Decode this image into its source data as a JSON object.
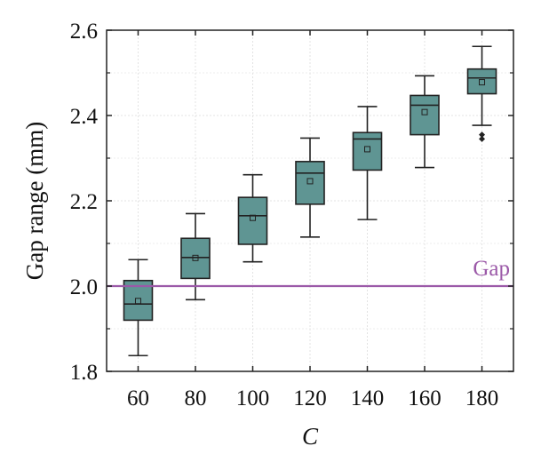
{
  "chart_data": {
    "type": "box",
    "xlabel": "C",
    "ylabel": "Gap range (mm)",
    "categories": [
      "60",
      "80",
      "100",
      "120",
      "140",
      "160",
      "180"
    ],
    "ylim": [
      1.8,
      2.6
    ],
    "yticks": [
      "1.8",
      "2.0",
      "2.2",
      "2.4",
      "2.6"
    ],
    "grid": true,
    "box_color": "#5f9593",
    "boxes": [
      {
        "min": 1.837,
        "q1": 1.92,
        "median": 1.958,
        "mean": 1.965,
        "q3": 2.013,
        "max": 2.062,
        "outliers": []
      },
      {
        "min": 1.968,
        "q1": 2.018,
        "median": 2.067,
        "mean": 2.066,
        "q3": 2.112,
        "max": 2.17,
        "outliers": []
      },
      {
        "min": 2.057,
        "q1": 2.098,
        "median": 2.165,
        "mean": 2.16,
        "q3": 2.208,
        "max": 2.261,
        "outliers": []
      },
      {
        "min": 2.115,
        "q1": 2.192,
        "median": 2.265,
        "mean": 2.246,
        "q3": 2.292,
        "max": 2.347,
        "outliers": []
      },
      {
        "min": 2.156,
        "q1": 2.272,
        "median": 2.345,
        "mean": 2.321,
        "q3": 2.36,
        "max": 2.421,
        "outliers": []
      },
      {
        "min": 2.278,
        "q1": 2.355,
        "median": 2.424,
        "mean": 2.408,
        "q3": 2.447,
        "max": 2.493,
        "outliers": []
      },
      {
        "min": 2.377,
        "q1": 2.451,
        "median": 2.488,
        "mean": 2.478,
        "q3": 2.509,
        "max": 2.562,
        "outliers": [
          2.345,
          2.355
        ]
      }
    ],
    "reference_line": {
      "label": "Gap",
      "value": 2.0,
      "color": "#9b59a8"
    }
  }
}
